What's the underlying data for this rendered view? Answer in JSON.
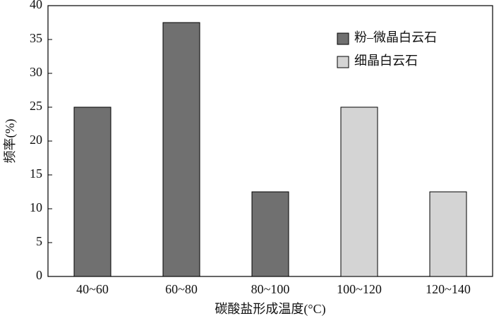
{
  "chart_data": {
    "type": "bar",
    "categories": [
      "40~60",
      "60~80",
      "80~100",
      "100~120",
      "120~140"
    ],
    "series": [
      {
        "name": "粉–微晶白云石",
        "color": "#707070",
        "values": [
          25,
          37.5,
          12.5,
          null,
          null
        ]
      },
      {
        "name": "细晶白云石",
        "color": "#d4d4d4",
        "values": [
          null,
          null,
          null,
          25,
          12.5
        ]
      }
    ],
    "x_label": "碳酸盐形成温度(°C)",
    "y_label": "频率(%)",
    "ylim": [
      0,
      40
    ],
    "yticks": [
      0,
      5,
      10,
      15,
      20,
      25,
      30,
      35,
      40
    ],
    "grid": false,
    "legend": "upper right"
  }
}
